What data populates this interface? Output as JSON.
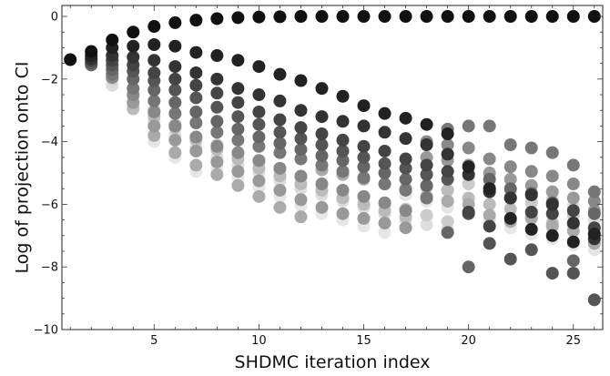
{
  "chart_data": {
    "type": "scatter",
    "title": "",
    "xlabel": "SHDMC iteration index",
    "ylabel": "Log of projection onto CI",
    "xlim": [
      0.6,
      26.4
    ],
    "ylim": [
      -10,
      0.35
    ],
    "xticks": [
      5,
      10,
      15,
      20,
      25
    ],
    "xtick_labels": [
      "5",
      "10",
      "15",
      "20",
      "25"
    ],
    "yticks": [
      0,
      -2,
      -4,
      -6,
      -8,
      -10
    ],
    "ytick_labels": [
      "0",
      "−2",
      "−4",
      "−6",
      "−8",
      "−10"
    ],
    "grid": false,
    "legend": "none",
    "frame": true,
    "marker": "circle",
    "series": [
      {
        "shade": "#111111",
        "x": [
          1,
          2,
          3,
          4,
          5,
          6,
          7,
          8,
          9,
          10,
          11,
          12,
          13,
          14,
          15,
          16,
          17,
          18,
          19,
          20,
          21,
          22,
          23,
          24,
          25,
          26
        ],
        "y": [
          -1.38,
          -1.12,
          -0.75,
          -0.5,
          -0.32,
          -0.2,
          -0.12,
          -0.07,
          -0.04,
          -0.02,
          -0.01,
          0,
          0,
          0,
          0,
          0,
          0,
          0,
          0,
          0,
          0,
          0,
          0,
          0,
          0,
          0
        ]
      },
      {
        "shade": "#222222",
        "x": [
          2,
          3,
          4,
          5,
          6,
          7,
          8,
          9,
          10,
          11,
          12,
          13,
          14,
          15,
          16,
          17,
          18,
          19,
          20,
          21,
          22,
          23,
          24,
          25,
          26
        ],
        "y": [
          -1.25,
          -1.0,
          -0.95,
          -0.9,
          -0.95,
          -1.15,
          -1.25,
          -1.4,
          -1.6,
          -1.85,
          -2.05,
          -2.3,
          -2.55,
          -2.85,
          -3.1,
          -3.25,
          -3.45,
          -3.75,
          -4.8,
          -5.5,
          -6.45,
          -6.8,
          -7.0,
          -7.2,
          -6.95
        ]
      },
      {
        "shade": "#333333",
        "x": [
          2,
          3,
          4,
          5,
          6,
          7,
          8,
          9,
          10,
          11,
          12,
          13,
          14,
          15,
          16,
          17,
          18,
          19,
          20,
          21,
          22,
          23,
          24,
          25,
          26
        ],
        "y": [
          -1.35,
          -1.25,
          -1.3,
          -1.4,
          -1.6,
          -1.8,
          -2.0,
          -2.3,
          -2.5,
          -2.7,
          -3.0,
          -3.2,
          -3.35,
          -3.5,
          -3.7,
          -3.9,
          -4.1,
          -4.4,
          -5.05,
          -5.6,
          -5.8,
          -5.7,
          -6.0,
          -6.6,
          -7.1
        ]
      },
      {
        "shade": "#444444",
        "x": [
          2,
          3,
          4,
          5,
          6,
          7,
          8,
          9,
          10,
          11,
          12,
          13,
          14,
          15,
          16,
          17,
          18,
          19,
          20,
          21,
          22,
          23,
          24,
          25,
          26
        ],
        "y": [
          -1.4,
          -1.4,
          -1.55,
          -1.8,
          -2.0,
          -2.2,
          -2.45,
          -2.75,
          -3.05,
          -3.3,
          -3.55,
          -3.75,
          -3.95,
          -4.15,
          -4.3,
          -4.55,
          -4.75,
          -4.95,
          -6.25,
          -6.7,
          -5.8,
          -6.25,
          -6.3,
          -6.2,
          -6.75
        ]
      },
      {
        "shade": "#555555",
        "x": [
          2,
          3,
          4,
          5,
          6,
          7,
          8,
          9,
          10,
          11,
          12,
          13,
          14,
          15,
          16,
          17,
          18,
          19,
          20,
          21,
          22,
          23,
          24,
          25,
          26
        ],
        "y": [
          -1.48,
          -1.55,
          -1.75,
          -2.05,
          -2.35,
          -2.6,
          -2.9,
          -3.2,
          -3.45,
          -3.7,
          -3.9,
          -4.1,
          -4.3,
          -4.5,
          -4.7,
          -4.85,
          -5.05,
          -5.2,
          -6.3,
          -7.25,
          -7.75,
          -7.45,
          -8.2,
          -8.2,
          -9.05
        ]
      },
      {
        "shade": "#666666",
        "x": [
          2,
          3,
          4,
          5,
          6,
          7,
          8,
          9,
          10,
          11,
          12,
          13,
          14,
          15,
          16,
          17,
          18,
          19,
          20,
          21,
          22,
          23,
          24,
          25,
          26
        ],
        "y": [
          -1.55,
          -1.7,
          -2.0,
          -2.35,
          -2.75,
          -3.05,
          -3.35,
          -3.6,
          -3.85,
          -4.05,
          -4.25,
          -4.45,
          -4.6,
          -4.8,
          -5.0,
          -5.2,
          -5.4,
          -6.9,
          -8.0,
          -5.2,
          -5.5,
          -5.65,
          -5.95,
          -7.8,
          -6.3
        ]
      },
      {
        "shade": "#777777",
        "x": [
          3,
          4,
          5,
          6,
          7,
          8,
          9,
          10,
          11,
          12,
          13,
          14,
          15,
          16,
          17,
          18,
          19,
          20,
          21,
          22,
          23,
          24,
          25,
          26
        ],
        "y": [
          -1.85,
          -2.3,
          -2.7,
          -3.1,
          -3.4,
          -3.7,
          -3.95,
          -4.15,
          -4.35,
          -4.55,
          -4.75,
          -4.95,
          -5.15,
          -5.35,
          -5.55,
          -5.8,
          -3.6,
          -3.5,
          -3.5,
          -4.1,
          -4.2,
          -4.35,
          -4.75,
          -5.6
        ]
      },
      {
        "shade": "#888888",
        "x": [
          3,
          4,
          5,
          6,
          7,
          8,
          9,
          10,
          11,
          12,
          13,
          14,
          15,
          16,
          17,
          18,
          19,
          20,
          21,
          22,
          23,
          24,
          25,
          26
        ],
        "y": [
          -1.95,
          -2.5,
          -3.05,
          -3.5,
          -3.85,
          -4.15,
          -4.35,
          -4.6,
          -4.85,
          -5.1,
          -5.35,
          -5.55,
          -5.75,
          -5.95,
          -6.2,
          -4.0,
          -4.1,
          -4.2,
          -4.55,
          -4.8,
          -4.95,
          -5.1,
          -5.35,
          -5.9
        ]
      },
      {
        "shade": "#999999",
        "x": [
          4,
          5,
          6,
          7,
          8,
          9,
          10,
          11,
          12,
          13,
          14,
          15,
          16,
          17,
          18,
          19,
          20,
          21,
          22,
          23,
          24,
          25,
          26
        ],
        "y": [
          -2.75,
          -3.5,
          -3.95,
          -4.3,
          -4.65,
          -4.95,
          -5.25,
          -5.55,
          -5.85,
          -6.1,
          -6.3,
          -6.45,
          -6.6,
          -6.75,
          -4.5,
          -4.6,
          -4.75,
          -5.0,
          -5.2,
          -5.4,
          -5.6,
          -5.8,
          -6.2
        ]
      },
      {
        "shade": "#aaaaaa",
        "x": [
          5,
          6,
          7,
          8,
          9,
          10,
          11,
          12,
          13,
          14,
          15,
          16,
          17,
          18,
          19,
          20,
          21,
          22,
          23,
          24,
          25,
          26
        ],
        "y": [
          -3.8,
          -4.35,
          -4.75,
          -5.05,
          -5.4,
          -5.75,
          -6.1,
          -6.4,
          -4.9,
          -5.05,
          -5.2,
          -5.35,
          -5.5,
          -5.75,
          -5.9,
          -6.0,
          -6.35,
          -6.55,
          -6.45,
          -6.7,
          -6.85,
          -7.25
        ]
      },
      {
        "shade": "#bbbbbb",
        "x": [
          4,
          5,
          6,
          7,
          8,
          9,
          10,
          11,
          12,
          13,
          14,
          15,
          16,
          17,
          18,
          19,
          20,
          21,
          22,
          23,
          24,
          25,
          26
        ],
        "y": [
          -2.95,
          -3.2,
          -3.55,
          -3.95,
          -4.25,
          -4.55,
          -4.85,
          -5.1,
          -5.35,
          -5.55,
          -5.8,
          -6.0,
          -6.2,
          -6.4,
          -5.45,
          -5.55,
          -5.8,
          -6.0,
          -6.15,
          -6.4,
          -6.6,
          -6.65,
          -6.95
        ]
      },
      {
        "shade": "#cccccc",
        "x": [
          2,
          3,
          4,
          5,
          6,
          7,
          8,
          9,
          10,
          11,
          12,
          13,
          14,
          15,
          16,
          17,
          18,
          19,
          20,
          21,
          22,
          23,
          24,
          25,
          26
        ],
        "y": [
          -1.55,
          -2.0,
          -2.55,
          -3.0,
          -3.45,
          -3.85,
          -4.1,
          -4.4,
          -4.65,
          -4.9,
          -5.15,
          -5.35,
          -5.55,
          -5.75,
          -6.0,
          -6.15,
          -6.35,
          -6.55,
          -5.35,
          -5.5,
          -5.75,
          -5.95,
          -6.05,
          -6.35,
          -6.85
        ]
      },
      {
        "shade": "#dddddd",
        "x": [
          3,
          4,
          5,
          6,
          7,
          8,
          9,
          10,
          11,
          12,
          13,
          14,
          15,
          16,
          17,
          18,
          19,
          20,
          21,
          22,
          23,
          24,
          25,
          26
        ],
        "y": [
          -2.2,
          -2.85,
          -3.35,
          -3.8,
          -4.2,
          -4.5,
          -4.75,
          -5.0,
          -5.25,
          -5.5,
          -5.7,
          -5.9,
          -6.1,
          -6.3,
          -6.5,
          -6.65,
          -6.8,
          -5.15,
          -5.35,
          -5.6,
          -5.8,
          -5.85,
          -6.05,
          -6.5
        ]
      },
      {
        "shade": "#e6e6e6",
        "x": [
          5,
          6,
          7,
          8,
          9,
          10,
          11,
          12,
          13,
          14,
          15,
          16,
          17,
          18,
          19,
          20,
          21,
          22,
          23,
          24,
          25,
          26
        ],
        "y": [
          -4.0,
          -4.5,
          -4.95,
          -4.85,
          -5.15,
          -5.45,
          -5.75,
          -6.05,
          -6.3,
          -6.5,
          -6.7,
          -6.9,
          -5.7,
          -5.9,
          -6.1,
          -6.3,
          -6.5,
          -6.75,
          -6.95,
          -7.1,
          -7.3,
          -7.45
        ]
      }
    ]
  }
}
